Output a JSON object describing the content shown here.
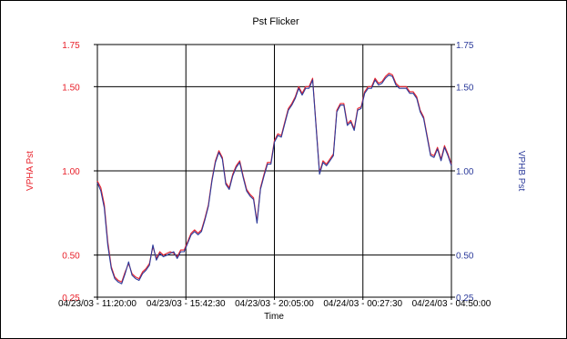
{
  "chart_data": {
    "type": "line",
    "title": "Pst Flicker",
    "xlabel": "Time",
    "ylabel_left": "VPHA Pst",
    "ylabel_right": "VPHB Pst",
    "ylim": [
      0.25,
      1.75
    ],
    "yticks": [
      0.25,
      0.5,
      1.0,
      1.5,
      1.75
    ],
    "yticks_labels": [
      "0.25",
      "0.50",
      "1.00",
      "1.50",
      "1.75"
    ],
    "xticks_labels": [
      "04/23/03 - 11:20:00",
      "04/23/03 - 15:42:30",
      "04/23/03 - 20:05:00",
      "04/24/03 - 00:27:30",
      "04/24/03 - 04:50:00"
    ],
    "grid": true,
    "colors": {
      "left_axis": "#e8202a",
      "right_axis": "#2b3a9a",
      "series_a": "#e8202a",
      "series_b": "#2b3a9a"
    },
    "series": [
      {
        "name": "VPHA Pst",
        "color": "#e8202a",
        "values": [
          0.94,
          0.9,
          0.8,
          0.58,
          0.43,
          0.37,
          0.35,
          0.34,
          0.4,
          0.45,
          0.39,
          0.37,
          0.36,
          0.4,
          0.42,
          0.45,
          0.55,
          0.48,
          0.52,
          0.5,
          0.51,
          0.52,
          0.51,
          0.49,
          0.53,
          0.53,
          0.58,
          0.63,
          0.65,
          0.63,
          0.65,
          0.72,
          0.8,
          0.95,
          1.06,
          1.12,
          1.08,
          0.93,
          0.9,
          0.98,
          1.03,
          1.06,
          0.97,
          0.89,
          0.86,
          0.84,
          0.7,
          0.9,
          0.98,
          1.05,
          1.05,
          1.18,
          1.22,
          1.21,
          1.29,
          1.37,
          1.4,
          1.44,
          1.5,
          1.46,
          1.5,
          1.5,
          1.55,
          1.27,
          0.99,
          1.06,
          1.04,
          1.07,
          1.1,
          1.36,
          1.4,
          1.4,
          1.28,
          1.3,
          1.25,
          1.37,
          1.38,
          1.47,
          1.5,
          1.5,
          1.55,
          1.52,
          1.53,
          1.56,
          1.58,
          1.57,
          1.52,
          1.5,
          1.5,
          1.5,
          1.47,
          1.47,
          1.44,
          1.36,
          1.32,
          1.21,
          1.1,
          1.09,
          1.14,
          1.07,
          1.15,
          1.1,
          1.04
        ]
      },
      {
        "name": "VPHB Pst",
        "color": "#2b3a9a",
        "values": [
          0.93,
          0.88,
          0.78,
          0.56,
          0.42,
          0.36,
          0.34,
          0.33,
          0.39,
          0.46,
          0.38,
          0.36,
          0.35,
          0.39,
          0.41,
          0.44,
          0.56,
          0.47,
          0.51,
          0.49,
          0.5,
          0.51,
          0.52,
          0.48,
          0.52,
          0.52,
          0.57,
          0.62,
          0.64,
          0.62,
          0.64,
          0.71,
          0.79,
          0.94,
          1.05,
          1.11,
          1.07,
          0.92,
          0.89,
          0.97,
          1.02,
          1.05,
          0.96,
          0.88,
          0.85,
          0.83,
          0.69,
          0.89,
          0.97,
          1.04,
          1.04,
          1.17,
          1.21,
          1.2,
          1.28,
          1.36,
          1.39,
          1.43,
          1.49,
          1.45,
          1.49,
          1.49,
          1.54,
          1.26,
          0.98,
          1.05,
          1.03,
          1.06,
          1.09,
          1.35,
          1.39,
          1.39,
          1.27,
          1.29,
          1.24,
          1.36,
          1.37,
          1.46,
          1.49,
          1.49,
          1.54,
          1.51,
          1.52,
          1.55,
          1.57,
          1.56,
          1.51,
          1.49,
          1.49,
          1.49,
          1.46,
          1.46,
          1.43,
          1.35,
          1.31,
          1.2,
          1.09,
          1.08,
          1.13,
          1.06,
          1.14,
          1.09,
          1.03
        ]
      }
    ]
  }
}
